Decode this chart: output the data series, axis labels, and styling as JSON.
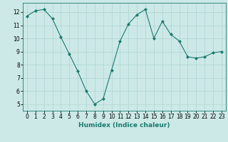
{
  "x": [
    0,
    1,
    2,
    3,
    4,
    5,
    6,
    7,
    8,
    9,
    10,
    11,
    12,
    13,
    14,
    15,
    16,
    17,
    18,
    19,
    20,
    21,
    22,
    23
  ],
  "y": [
    11.7,
    12.1,
    12.2,
    11.5,
    10.1,
    8.8,
    7.5,
    6.0,
    5.0,
    5.4,
    7.6,
    9.8,
    11.1,
    11.8,
    12.2,
    10.0,
    11.3,
    10.3,
    9.8,
    8.6,
    8.5,
    8.6,
    8.9,
    9.0
  ],
  "line_color": "#1a7a6e",
  "marker": "D",
  "marker_size": 2.0,
  "bg_color": "#cce9e7",
  "grid_color": "#aed4d1",
  "xlabel": "Humidex (Indice chaleur)",
  "ylim": [
    4.5,
    12.7
  ],
  "xlim": [
    -0.5,
    23.5
  ],
  "yticks": [
    5,
    6,
    7,
    8,
    9,
    10,
    11,
    12
  ],
  "xticks": [
    0,
    1,
    2,
    3,
    4,
    5,
    6,
    7,
    8,
    9,
    10,
    11,
    12,
    13,
    14,
    15,
    16,
    17,
    18,
    19,
    20,
    21,
    22,
    23
  ],
  "tick_fontsize": 5.5,
  "label_fontsize": 6.5
}
